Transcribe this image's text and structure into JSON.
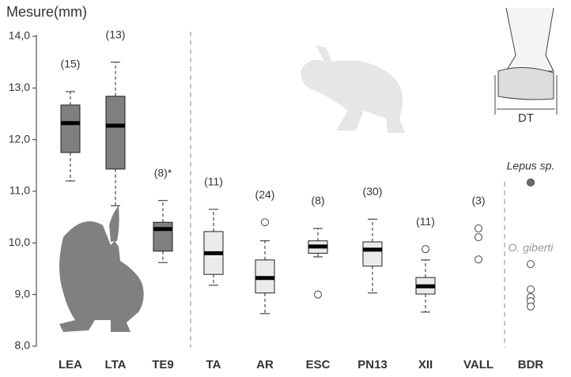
{
  "chart_data": {
    "type": "box",
    "title": "Mesure(mm)",
    "inset_label": "DT",
    "ylim": [
      8,
      14
    ],
    "yticks": [
      {
        "value": 8,
        "label": "8,0"
      },
      {
        "value": 9,
        "label": "9,0"
      },
      {
        "value": 10,
        "label": "10,0"
      },
      {
        "value": 11,
        "label": "11,0"
      },
      {
        "value": 12,
        "label": "12,0"
      },
      {
        "value": 13,
        "label": "13,0"
      },
      {
        "value": 14,
        "label": "14,0"
      }
    ],
    "categories": [
      "LEA",
      "LTA",
      "TE9",
      "TA",
      "AR",
      "ESC",
      "PN13",
      "XII",
      "VALL",
      "BDR"
    ],
    "groups": [
      {
        "count": "(15)",
        "fill": "#7f7f7f",
        "whislo": 11.2,
        "q1": 11.75,
        "med": 12.32,
        "q3": 12.67,
        "whishi": 12.93,
        "fliers": []
      },
      {
        "count": "(13)",
        "fill": "#7f7f7f",
        "whislo": 10.72,
        "q1": 11.43,
        "med": 12.27,
        "q3": 12.84,
        "whishi": 13.5,
        "fliers": []
      },
      {
        "count": "(8)*",
        "fill": "#7f7f7f",
        "whislo": 9.62,
        "q1": 9.84,
        "med": 10.27,
        "q3": 10.4,
        "whishi": 10.82,
        "fliers": []
      },
      {
        "count": "(11)",
        "fill": "#ebebeb",
        "whislo": 9.18,
        "q1": 9.39,
        "med": 9.8,
        "q3": 10.22,
        "whishi": 10.65,
        "fliers": []
      },
      {
        "count": "(24)",
        "fill": "#ebebeb",
        "whislo": 8.63,
        "q1": 9.03,
        "med": 9.32,
        "q3": 9.67,
        "whishi": 10.04,
        "fliers": [
          10.4
        ]
      },
      {
        "count": "(8)",
        "fill": "#ebebeb",
        "whislo": 9.73,
        "q1": 9.8,
        "med": 9.93,
        "q3": 10.04,
        "whishi": 10.28,
        "fliers": [
          9.0
        ]
      },
      {
        "count": "(30)",
        "fill": "#ebebeb",
        "whislo": 9.03,
        "q1": 9.55,
        "med": 9.87,
        "q3": 10.02,
        "whishi": 10.46,
        "fliers": []
      },
      {
        "count": "(11)",
        "fill": "#ebebeb",
        "whislo": 8.66,
        "q1": 9.01,
        "med": 9.16,
        "q3": 9.33,
        "whishi": 9.67,
        "fliers": [
          9.88
        ]
      },
      {
        "count": "(3)",
        "points": [
          10.28,
          10.11,
          9.68
        ]
      },
      {
        "point_groups": [
          {
            "name": "Lepus sp.",
            "color": "#6e6e6e",
            "label_color": "#333333",
            "values": [
              11.17
            ]
          },
          {
            "name": "O. giberti",
            "color": "#ffffff",
            "label_color": "#999999",
            "values": [
              9.59,
              9.1,
              8.95,
              8.87,
              8.77
            ]
          }
        ]
      }
    ]
  }
}
